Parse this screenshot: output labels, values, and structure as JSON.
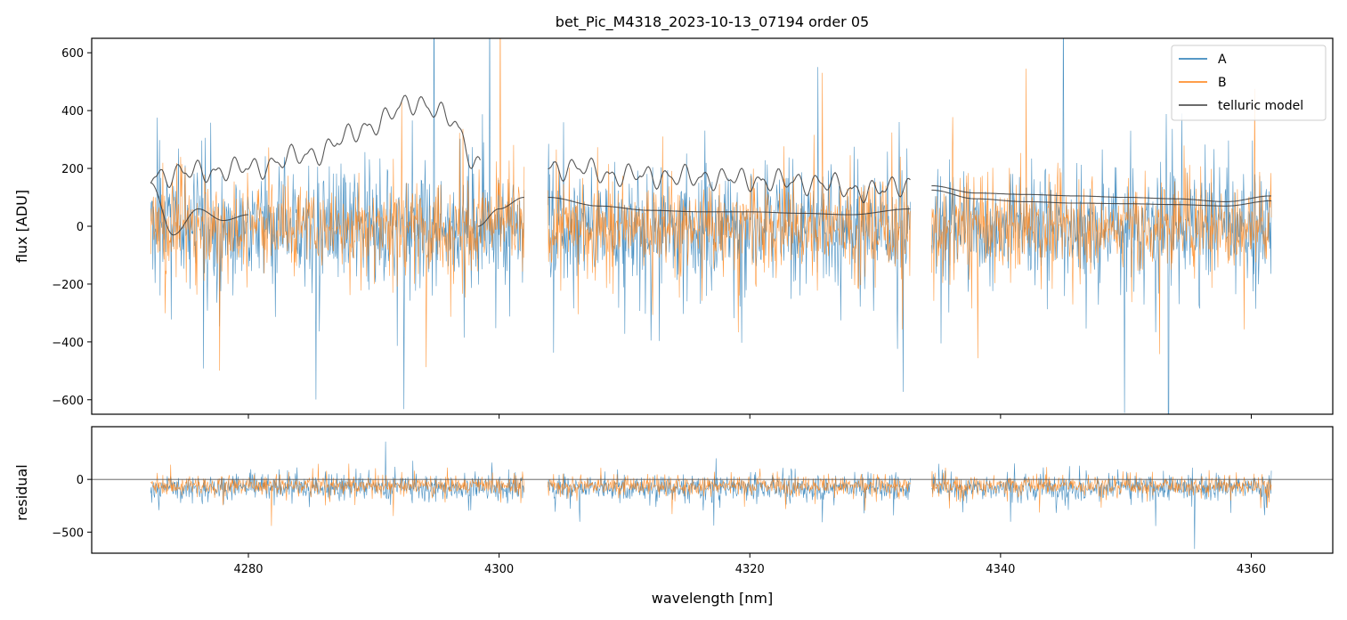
{
  "chart_data": [
    {
      "panel": "flux",
      "type": "line",
      "title": "bet_Pic_M4318_2023-10-13_07194  order 05",
      "xlabel": "",
      "ylabel": "flux [ADU]",
      "xlim": [
        4267.5,
        4366.5
      ],
      "ylim": [
        -650,
        650
      ],
      "yticks": [
        -600,
        -400,
        -200,
        0,
        200,
        400,
        600
      ],
      "ytick_labels": [
        "−600",
        "−400",
        "−200",
        "0",
        "200",
        "400",
        "600"
      ],
      "xticks": [
        4280,
        4300,
        4320,
        4340,
        4360
      ],
      "grid": false,
      "legend": {
        "placement": "top-right",
        "entries": [
          "A",
          "B",
          "telluric model"
        ]
      },
      "segments": [
        {
          "x_start": 4272.2,
          "x_end": 4302.0
        },
        {
          "x_start": 4303.9,
          "x_end": 4332.8
        },
        {
          "x_start": 4334.5,
          "x_end": 4361.6
        }
      ],
      "series": [
        {
          "name": "A",
          "color": "#1f77b4",
          "level": 0,
          "noise_amplitude": 250,
          "description": "noisy spectrum, mean near 0"
        },
        {
          "name": "B",
          "color": "#ff7f0e",
          "level": 0,
          "noise_amplitude": 200,
          "description": "noisy spectrum, mean near 0"
        },
        {
          "name": "telluric model",
          "color": "#3a3a3a",
          "curves": [
            {
              "x": [
                4272.2,
                4275,
                4280,
                4285,
                4290,
                4293,
                4296,
                4298.5
              ],
              "y": [
                170,
                185,
                200,
                250,
                350,
                430,
                380,
                200
              ]
            },
            {
              "x": [
                4272.2,
                4274,
                4276,
                4278,
                4280
              ],
              "y": [
                150,
                -30,
                60,
                20,
                40
              ]
            },
            {
              "x": [
                4298.3,
                4300,
                4302.0
              ],
              "y": [
                0,
                60,
                100
              ]
            },
            {
              "x": [
                4303.9,
                4306,
                4310,
                4315,
                4320,
                4325,
                4330,
                4332.8
              ],
              "y": [
                200,
                200,
                175,
                170,
                160,
                150,
                120,
                150
              ]
            },
            {
              "x": [
                4303.9,
                4308,
                4312,
                4316,
                4320,
                4324,
                4328,
                4332.8
              ],
              "y": [
                100,
                70,
                55,
                50,
                50,
                45,
                40,
                60
              ]
            },
            {
              "x": [
                4334.5,
                4338,
                4342,
                4346,
                4350,
                4354,
                4358,
                4361.6
              ],
              "y": [
                140,
                115,
                110,
                105,
                100,
                95,
                85,
                105
              ]
            },
            {
              "x": [
                4334.5,
                4338,
                4342,
                4346,
                4350,
                4354,
                4358,
                4361.6
              ],
              "y": [
                125,
                95,
                85,
                80,
                78,
                75,
                70,
                88
              ]
            }
          ]
        }
      ]
    },
    {
      "panel": "residual",
      "type": "line",
      "xlabel": "wavelength [nm]",
      "ylabel": "residual",
      "xlim": [
        4267.5,
        4366.5
      ],
      "ylim": [
        -700,
        500
      ],
      "yticks": [
        -500,
        0
      ],
      "ytick_labels": [
        "−500",
        "0"
      ],
      "xticks": [
        4280,
        4300,
        4320,
        4340,
        4360
      ],
      "xtick_labels": [
        "4280",
        "4300",
        "4320",
        "4340",
        "4360"
      ],
      "zero_line": 0,
      "grid": false,
      "series": [
        {
          "name": "A",
          "color": "#1f77b4",
          "level": -80,
          "noise_amplitude": 150
        },
        {
          "name": "B",
          "color": "#ff7f0e",
          "level": -60,
          "noise_amplitude": 120
        }
      ]
    }
  ]
}
